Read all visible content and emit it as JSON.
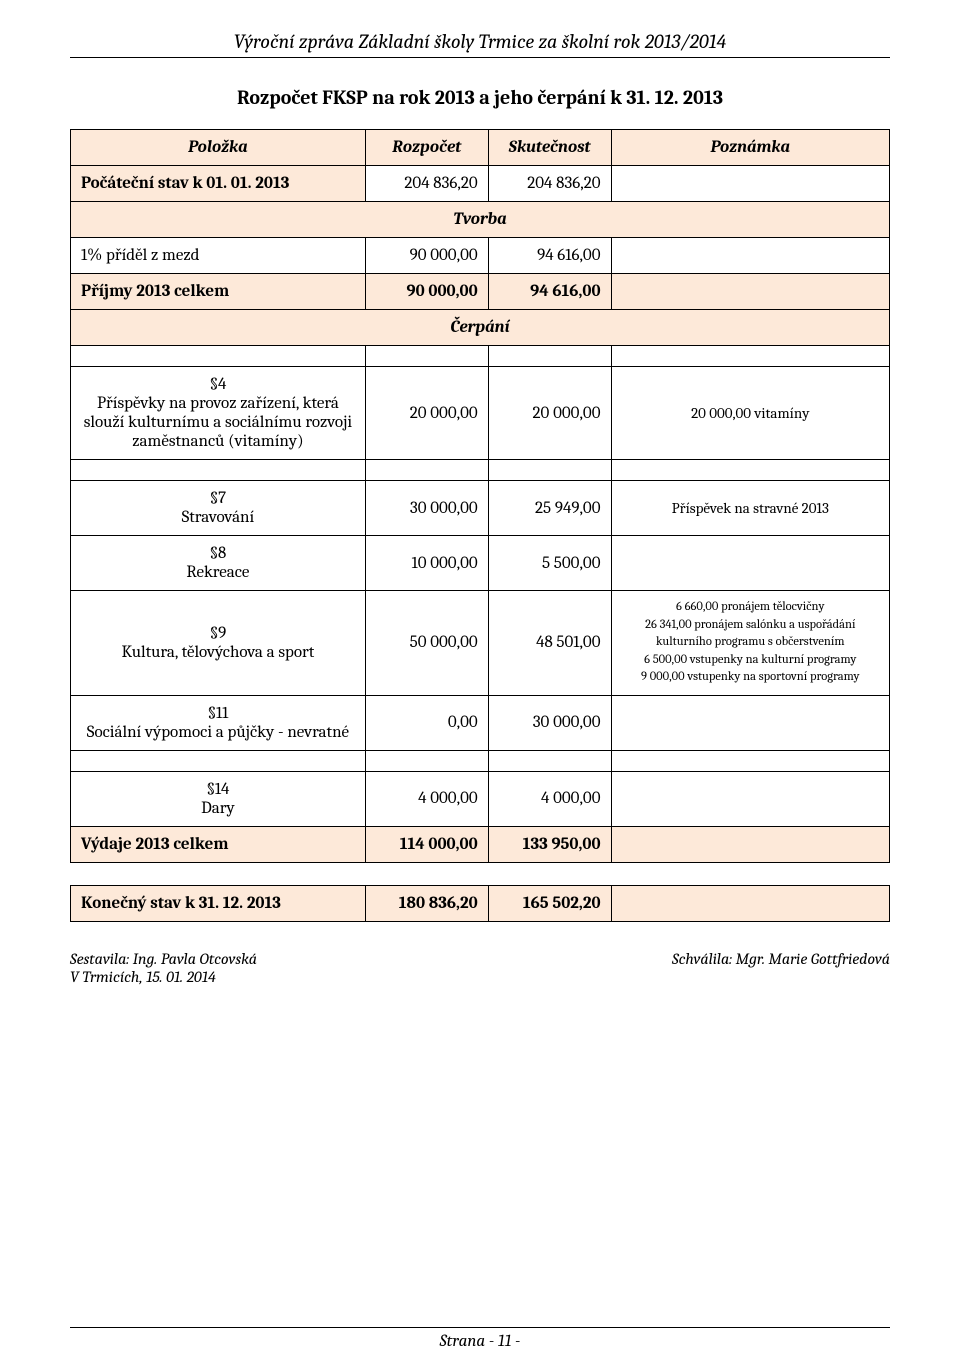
{
  "colors": {
    "highlight_bg": "#fde9d9",
    "text": "#000000",
    "bg": "#ffffff",
    "border": "#000000"
  },
  "header": {
    "title": "Výroční zpráva Základní školy Trmice za školní rok 2013/2014"
  },
  "section_title": "Rozpočet FKSP na rok 2013 a jeho čerpání k 31. 12. 2013",
  "table": {
    "columns": {
      "c1": "Položka",
      "c2": "Rozpočet",
      "c3": "Skutečnost",
      "c4": "Poznámka"
    },
    "opening": {
      "label": "Počáteční stav k 01. 01. 2013",
      "budget": "204 836,20",
      "actual": "204 836,20",
      "note": ""
    },
    "tvorba_header": "Tvorba",
    "tvorba_rows": {
      "r1": {
        "label": "1% příděl z mezd",
        "budget": "90 000,00",
        "actual": "94 616,00",
        "note": ""
      },
      "r2": {
        "label": "Příjmy 2013 celkem",
        "budget": "90 000,00",
        "actual": "94 616,00",
        "note": ""
      }
    },
    "cerpani_header": "Čerpání",
    "cerpani_rows": {
      "p4": {
        "label": "§4\nPříspěvky na provoz zařízení, která slouží kulturnímu a sociálnímu rozvoji zaměstnanců (vitamíny)",
        "para": "§4",
        "desc": "Příspěvky na provoz zařízení, která slouží kulturnímu a sociálnímu rozvoji zaměstnanců (vitamíny)",
        "budget": "20 000,00",
        "actual": "20 000,00",
        "note": "20 000,00 vitamíny"
      },
      "p7": {
        "para": "§7",
        "desc": "Stravování",
        "budget": "30 000,00",
        "actual": "25 949,00",
        "note": "Příspěvek na stravné 2013"
      },
      "p8": {
        "para": "§8",
        "desc": "Rekreace",
        "budget": "10 000,00",
        "actual": "5 500,00",
        "note": ""
      },
      "p9": {
        "para": "§9",
        "desc": "Kultura, tělovýchova a sport",
        "budget": "50 000,00",
        "actual": "48 501,00",
        "note_lines": {
          "l1": "6 660,00 pronájem tělocvičny",
          "l2": "26 341,00 pronájem salónku a uspořádání kulturního programu s občerstvením",
          "l3": "6 500,00 vstupenky na kulturní programy",
          "l4": "9 000,00 vstupenky na sportovní programy"
        }
      },
      "p11": {
        "para": "§11",
        "desc": "Sociální výpomoci a půjčky - nevratné",
        "budget": "0,00",
        "actual": "30 000,00",
        "note": ""
      },
      "p14": {
        "para": "§14",
        "desc": "Dary",
        "budget": "4 000,00",
        "actual": "4 000,00",
        "note": ""
      }
    },
    "expenses_total": {
      "label": "Výdaje 2013 celkem",
      "budget": "114 000,00",
      "actual": "133 950,00",
      "note": ""
    },
    "closing": {
      "label": "Konečný stav k 31. 12. 2013",
      "budget": "180 836,20",
      "actual": "165 502,20",
      "note": ""
    }
  },
  "signatures": {
    "left_line1": "Sestavila: Ing. Pavla Otcovská",
    "left_line2": "V Trmicích, 15. 01. 2014",
    "right": "Schválila:  Mgr. Marie Gottfriedová"
  },
  "footer": {
    "text": "Strana  - 11 -"
  }
}
